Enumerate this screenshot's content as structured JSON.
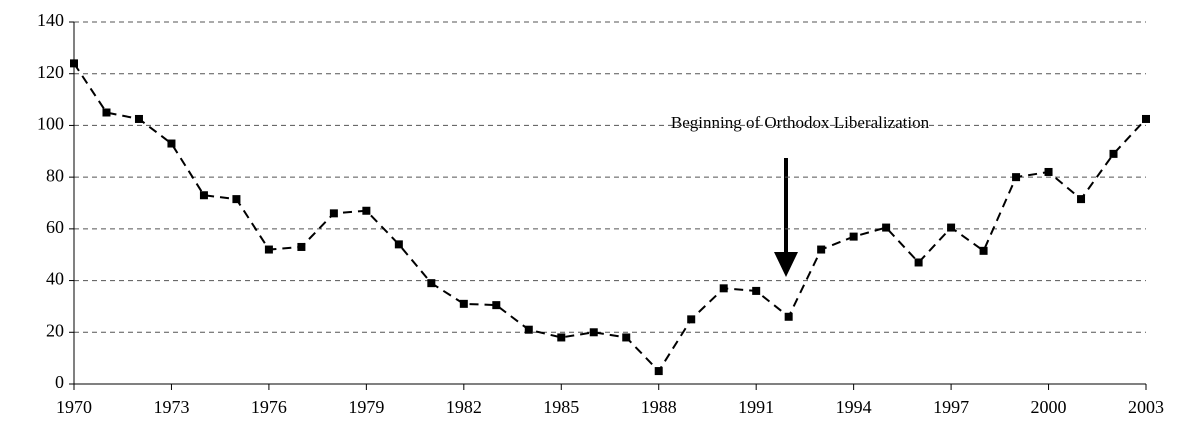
{
  "chart_data": {
    "type": "line",
    "annotation": "Beginning of Orthodox Liberalization",
    "x": [
      1970,
      1971,
      1972,
      1973,
      1974,
      1975,
      1976,
      1977,
      1978,
      1979,
      1980,
      1981,
      1982,
      1983,
      1984,
      1985,
      1986,
      1987,
      1988,
      1989,
      1990,
      1991,
      1992,
      1993,
      1994,
      1995,
      1996,
      1997,
      1998,
      1999,
      2000,
      2001,
      2002,
      2003
    ],
    "series": [
      {
        "color": "#000000",
        "values": [
          124,
          105,
          102.5,
          93,
          73,
          71.5,
          52,
          53,
          66,
          67,
          54,
          39,
          31,
          30.5,
          21,
          18,
          20,
          18,
          5,
          25,
          37,
          36,
          26,
          52,
          57,
          60.5,
          47,
          60.5,
          51.5,
          80,
          82,
          71.5,
          89,
          102.5
        ]
      }
    ],
    "xlim": [
      1970,
      2003
    ],
    "xticks": [
      1970,
      1973,
      1976,
      1979,
      1982,
      1985,
      1988,
      1991,
      1994,
      1997,
      2000,
      2003
    ],
    "ylim": [
      0,
      140
    ],
    "yticks": [
      0,
      20,
      40,
      60,
      80,
      100,
      120,
      140
    ],
    "grid": true,
    "line_style": "dashed"
  }
}
